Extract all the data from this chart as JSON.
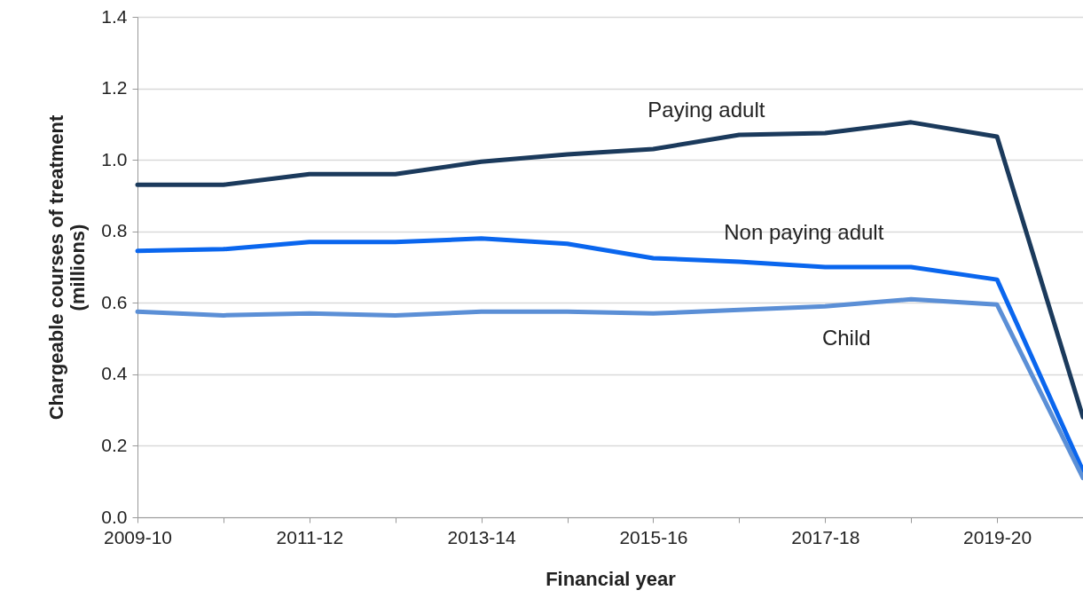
{
  "chart_data": {
    "type": "line",
    "xlabel": "Financial year",
    "ylabel": "Chargeable courses of treatment\n(millions)",
    "categories": [
      "2009-10",
      null,
      "2011-12",
      null,
      "2013-14",
      null,
      "2015-16",
      null,
      "2017-18",
      null,
      "2019-20",
      null
    ],
    "series": [
      {
        "name": "Paying adult",
        "color": "#1b3a5c",
        "values": [
          0.93,
          0.93,
          0.96,
          0.96,
          0.995,
          1.015,
          1.03,
          1.07,
          1.075,
          1.105,
          1.065,
          0.28
        ]
      },
      {
        "name": "Non paying adult",
        "color": "#0a66ee",
        "values": [
          0.745,
          0.75,
          0.77,
          0.77,
          0.78,
          0.765,
          0.725,
          0.715,
          0.7,
          0.7,
          0.665,
          0.13
        ]
      },
      {
        "name": "Child",
        "color": "#5b8fd6",
        "values": [
          0.575,
          0.565,
          0.57,
          0.565,
          0.575,
          0.575,
          0.57,
          0.58,
          0.59,
          0.61,
          0.595,
          0.11
        ]
      }
    ],
    "ylim": [
      0,
      1.4
    ],
    "yticks": [
      {
        "value": 0,
        "label": "0.0"
      },
      0.2,
      0.4,
      0.6,
      0.8,
      {
        "value": 1,
        "label": "1.0"
      },
      1.2,
      1.4
    ],
    "grid": "y",
    "legend": false,
    "marker": "none",
    "line_style": "solid"
  }
}
